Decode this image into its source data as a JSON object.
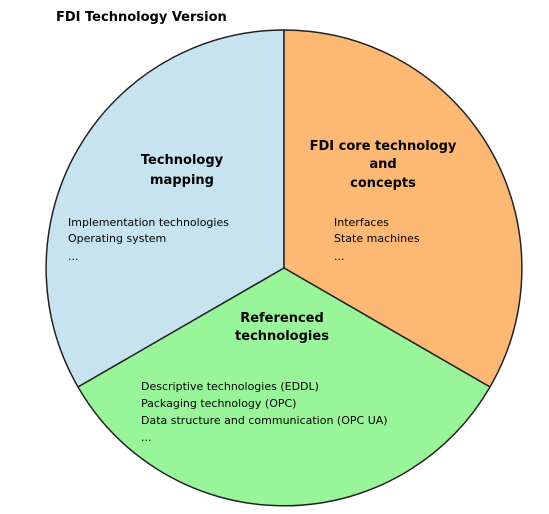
{
  "title": "FDI Technology Version",
  "colors": {
    "technology_mapping": "#c7e3ef",
    "core_technology": "#fdb873",
    "referenced_technologies": "#99f599",
    "outline": "#222222"
  },
  "segments": {
    "technology_mapping": {
      "heading": [
        "Technology",
        "mapping"
      ],
      "items": [
        "Implementation technologies",
        "Operating system",
        "..."
      ]
    },
    "core_technology": {
      "heading": [
        "FDI core technology",
        "and",
        "concepts"
      ],
      "items": [
        "Interfaces",
        "State machines",
        "..."
      ]
    },
    "referenced_technologies": {
      "heading": [
        "Referenced",
        "technologies"
      ],
      "items": [
        "Descriptive technologies (EDDL)",
        "Packaging technology (OPC)",
        "Data structure and communication (OPC UA)",
        "..."
      ]
    }
  }
}
